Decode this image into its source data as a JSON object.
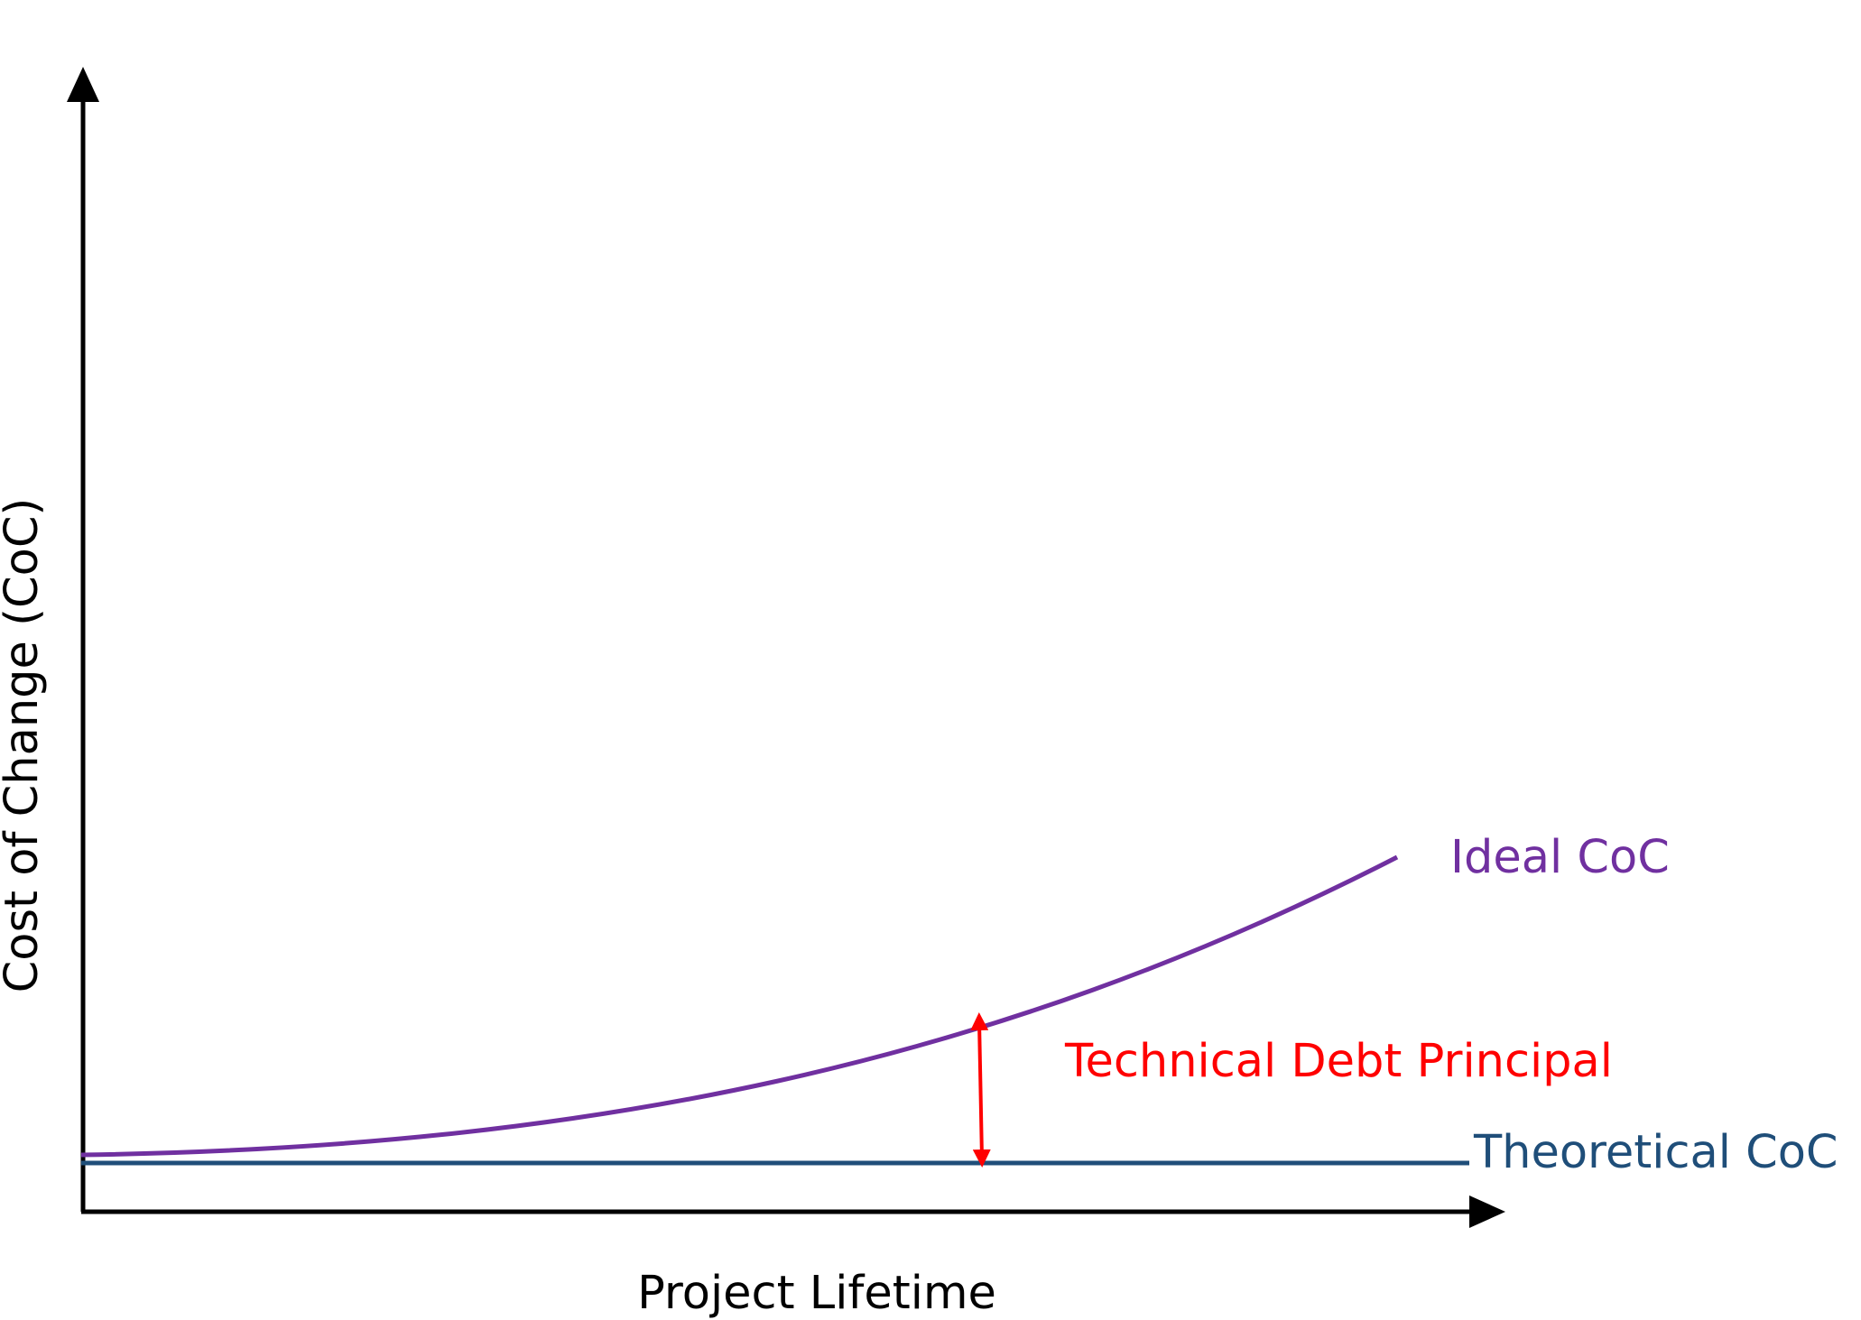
{
  "diagram": {
    "x_axis_label": "Project Lifetime",
    "y_axis_label": "Cost of Change (CoC)",
    "curves": {
      "ideal": {
        "label": "Ideal CoC",
        "color": "#7030a0"
      },
      "theoretical": {
        "label": "Theoretical CoC",
        "color": "#1f4e79"
      }
    },
    "gap": {
      "label": "Technical Debt Principal",
      "color": "#ff0000"
    },
    "axis_color": "#000000"
  }
}
